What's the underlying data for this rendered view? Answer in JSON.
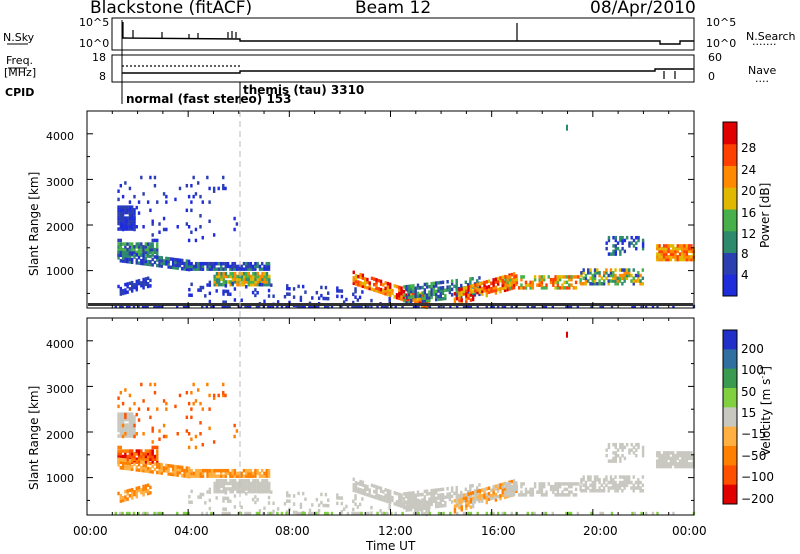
{
  "header": {
    "station": "Blackstone (fitACF)",
    "beam": "Beam 12",
    "date": "08/Apr/2010"
  },
  "left_labels": {
    "nsky": "N.Sky",
    "freq": "Freq.",
    "freq_unit": "[MHz]",
    "cpid": "CPID"
  },
  "right_labels": {
    "nsearch": "N.Search",
    "nave": "Nave"
  },
  "top_axes": {
    "noise_ticks": [
      "10^5",
      "10^0"
    ],
    "freq_ticks": [
      "18",
      "8"
    ],
    "nave_ticks": [
      "60",
      "0"
    ]
  },
  "cpid_labels": {
    "mode1": "normal (fast stereo) 153",
    "mode2": "themis (tau) 3310"
  },
  "chart_data": [
    {
      "type": "heatmap",
      "name": "power",
      "ylabel": "Slant Range [km]",
      "yticks": [
        "1000",
        "2000",
        "3000",
        "4000"
      ],
      "ylim": [
        180,
        4500
      ],
      "colorbar_label": "Power [dB]",
      "colorbar_ticks": [
        "4",
        "8",
        "12",
        "16",
        "20",
        "24",
        "28"
      ],
      "colorbar_colors": [
        "#1f2cdc",
        "#2b3fb0",
        "#2e8a6c",
        "#48b04a",
        "#e0b800",
        "#ff8a00",
        "#ff4000",
        "#e00000"
      ]
    },
    {
      "type": "heatmap",
      "name": "velocity",
      "ylabel": "Slant Range [km]",
      "yticks": [
        "1000",
        "2000",
        "3000",
        "4000"
      ],
      "ylim": [
        180,
        4500
      ],
      "colorbar_label": "Velocity [m s",
      "colorbar_label_sup": "-1",
      "colorbar_label_end": "]",
      "colorbar_ticks": [
        "200",
        "100",
        "50",
        "15",
        "−15",
        "−50",
        "−100",
        "−200"
      ],
      "colorbar_colors": [
        "#2030c8",
        "#2f70a0",
        "#3a9a50",
        "#80d040",
        "#c8c8c0",
        "#ffb040",
        "#ff8000",
        "#ff5000",
        "#e00000"
      ]
    }
  ],
  "xaxis": {
    "ticks": [
      "00:00",
      "04:00",
      "08:00",
      "12:00",
      "16:00",
      "20:00",
      "00:00"
    ],
    "label": "Time UT"
  }
}
